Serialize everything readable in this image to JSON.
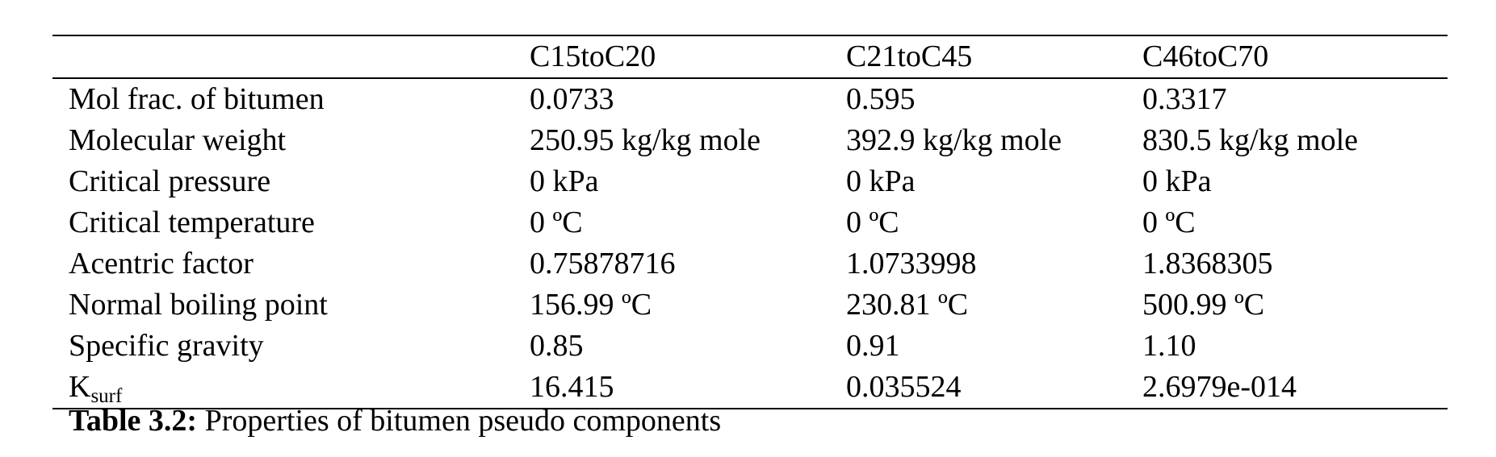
{
  "table": {
    "headers": [
      "",
      "C15toC20",
      "C21toC45",
      "C46toC70"
    ],
    "rows": [
      {
        "label": "Mol frac. of bitumen",
        "values": [
          "0.0733",
          "0.595",
          "0.3317"
        ]
      },
      {
        "label": "Molecular weight",
        "values": [
          "250.95 kg/kg mole",
          "392.9 kg/kg mole",
          "830.5 kg/kg mole"
        ]
      },
      {
        "label": "Critical pressure",
        "values": [
          "0 kPa",
          "0 kPa",
          "0 kPa"
        ]
      },
      {
        "label": "Critical temperature",
        "values": [
          "0 ºC",
          "0 ºC",
          "0 ºC"
        ]
      },
      {
        "label": "Acentric factor",
        "values": [
          "0.75878716",
          "1.0733998",
          "1.8368305"
        ]
      },
      {
        "label": "Normal boiling point",
        "values": [
          "156.99 ºC",
          "230.81 ºC",
          "500.99 ºC"
        ]
      },
      {
        "label": "Specific gravity",
        "values": [
          "0.85",
          "0.91",
          "1.10"
        ]
      },
      {
        "label_main": "K",
        "label_sub": "surf",
        "values": [
          "16.415",
          "0.035524",
          "2.6979e-014"
        ]
      }
    ]
  },
  "caption": {
    "label": "Table 3.2:",
    "text": " Properties of bitumen pseudo components"
  }
}
